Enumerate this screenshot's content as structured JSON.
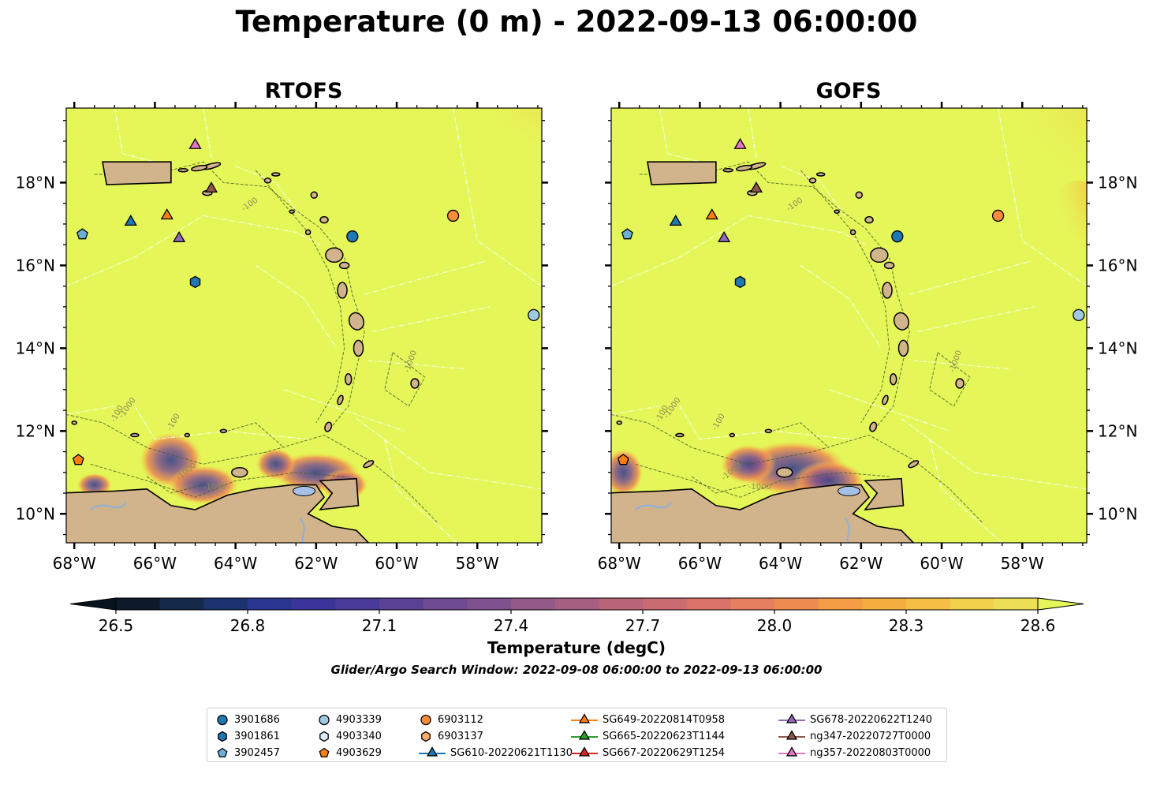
{
  "title": "Temperature (0 m) - 2022-09-13 06:00:00",
  "panels": [
    {
      "title": "RTOFS"
    },
    {
      "title": "GOFS"
    }
  ],
  "colorbar": {
    "label": "Temperature (degC)",
    "ticks": [
      "26.5",
      "26.8",
      "27.1",
      "27.4",
      "27.7",
      "28.0",
      "28.3",
      "28.6"
    ],
    "min": 26.5,
    "max": 28.6,
    "step": 0.1,
    "colors": [
      "#0d1a2a",
      "#152a4a",
      "#1d3370",
      "#2b3692",
      "#3b3599",
      "#4a3a99",
      "#5b4196",
      "#6d4a92",
      "#7f528d",
      "#925987",
      "#a65f80",
      "#b86579",
      "#c96b70",
      "#d9736a",
      "#e57f60",
      "#ee8c52",
      "#f49c46",
      "#f6ad40",
      "#f4bf44",
      "#f1d04c",
      "#ecde55"
    ],
    "under_color": "#081320",
    "over_color": "#e5f758"
  },
  "search_window": "Glider/Argo Search Window: 2022-09-08 06:00:00 to 2022-09-13 06:00:00",
  "chart_data": {
    "type": "map",
    "projection": "PlateCarree",
    "extent_lon": [
      -68.2,
      -56.4
    ],
    "extent_lat": [
      9.3,
      19.8
    ],
    "x_ticks": [
      {
        "value": -68,
        "label": "68°W"
      },
      {
        "value": -66,
        "label": "66°W"
      },
      {
        "value": -64,
        "label": "64°W"
      },
      {
        "value": -62,
        "label": "62°W"
      },
      {
        "value": -60,
        "label": "60°W"
      },
      {
        "value": -58,
        "label": "58°W"
      }
    ],
    "y_ticks": [
      {
        "value": 10,
        "label": "10°N"
      },
      {
        "value": 12,
        "label": "12°N"
      },
      {
        "value": 14,
        "label": "14°N"
      },
      {
        "value": 16,
        "label": "16°N"
      },
      {
        "value": 18,
        "label": "18°N"
      }
    ],
    "field_background_color": "#e5f758",
    "land_color": "#d2b48c",
    "contour_labels": [
      "-100",
      "-1000"
    ],
    "markers": [
      {
        "name": "3901686",
        "shape": "circle",
        "color": "#1f77b4",
        "lon": -61.1,
        "lat": 16.7
      },
      {
        "name": "3901861",
        "shape": "hexagon",
        "color": "#1f77b4",
        "lon": -65.0,
        "lat": 15.6
      },
      {
        "name": "3902457",
        "shape": "pentagon",
        "color": "#6baed6",
        "lon": -67.8,
        "lat": 16.75
      },
      {
        "name": "4903339",
        "shape": "circle",
        "color": "#9ecae1",
        "lon": -56.6,
        "lat": 14.8
      },
      {
        "name": "4903340",
        "shape": "hexagon",
        "color": "#deebf7",
        "lon": null,
        "lat": null
      },
      {
        "name": "4903629",
        "shape": "pentagon",
        "color": "#ff7f0e",
        "lon": -67.9,
        "lat": 11.3
      },
      {
        "name": "6903112",
        "shape": "circle",
        "color": "#fd8d3c",
        "lon": -58.6,
        "lat": 17.2
      },
      {
        "name": "6903137",
        "shape": "hexagon",
        "color": "#fdae6b",
        "lon": null,
        "lat": null
      },
      {
        "name": "SG610-20220621T1130",
        "shape": "triangle",
        "color": "#1f77b4",
        "lon": -66.6,
        "lat": 17.05,
        "glider": true
      },
      {
        "name": "SG649-20220814T0958",
        "shape": "triangle",
        "color": "#ff7f0e",
        "lon": -65.7,
        "lat": 17.2,
        "glider": true
      },
      {
        "name": "SG665-20220623T1144",
        "shape": "triangle",
        "color": "#2ca02c",
        "lon": null,
        "lat": null,
        "glider": true
      },
      {
        "name": "SG667-20220629T1254",
        "shape": "triangle",
        "color": "#d62728",
        "lon": null,
        "lat": null,
        "glider": true
      },
      {
        "name": "SG678-20220622T1240",
        "shape": "triangle",
        "color": "#9467bd",
        "lon": -65.4,
        "lat": 16.65,
        "glider": true
      },
      {
        "name": "ng347-20220727T0000",
        "shape": "triangle",
        "color": "#8c564b",
        "lon": -64.6,
        "lat": 17.85,
        "glider": true
      },
      {
        "name": "ng357-20220803T0000",
        "shape": "triangle",
        "color": "#e377c2",
        "lon": -65.0,
        "lat": 18.9,
        "glider": true
      }
    ]
  }
}
